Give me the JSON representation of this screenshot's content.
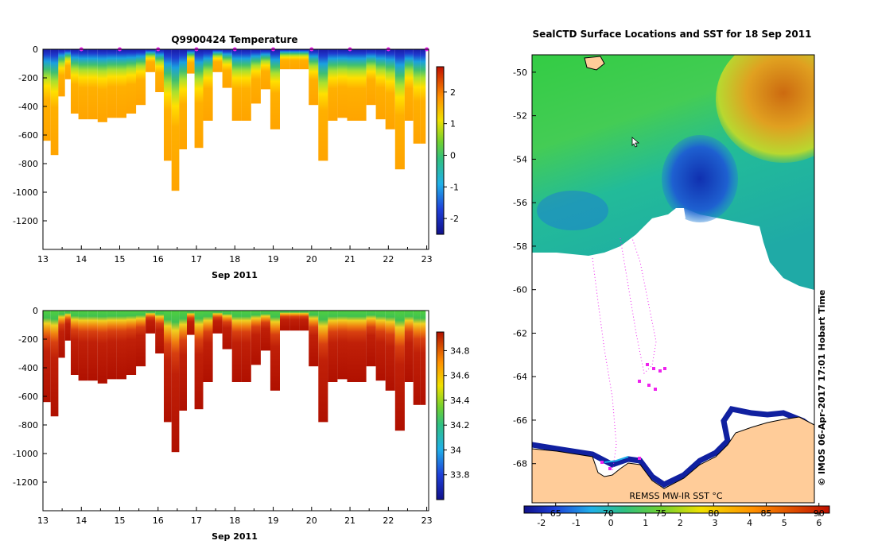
{
  "charts": {
    "temperature": {
      "type": "heatmap",
      "title": "Q9900424  Temperature",
      "xlabel": "Sep 2011",
      "x_ticks": [
        "13",
        "14",
        "15",
        "16",
        "17",
        "18",
        "19",
        "20",
        "21",
        "22",
        "23"
      ],
      "xlim": [
        13,
        23.05
      ],
      "y_ticks": [
        "0",
        "-200",
        "-400",
        "-600",
        "-800",
        "-1000",
        "-1200"
      ],
      "ylim": [
        -1400,
        0
      ],
      "colorbar_ticks": [
        "2",
        "1",
        "0",
        "-1",
        "-2"
      ],
      "colorbar_range": [
        -2.5,
        2.8
      ],
      "colors": {
        "surface": "#1020a0",
        "mid": "#40c070",
        "deep": "#ffb000"
      }
    },
    "salinity": {
      "type": "heatmap",
      "title": "",
      "xlabel": "Sep 2011",
      "x_ticks": [
        "13",
        "14",
        "15",
        "16",
        "17",
        "18",
        "19",
        "20",
        "21",
        "22",
        "23"
      ],
      "xlim": [
        13,
        23.05
      ],
      "y_ticks": [
        "0",
        "-200",
        "-400",
        "-600",
        "-800",
        "-1000",
        "-1200"
      ],
      "ylim": [
        -1400,
        0
      ],
      "colorbar_ticks": [
        "34.8",
        "34.6",
        "34.4",
        "34.2",
        "34",
        "33.8"
      ],
      "colorbar_range": [
        33.6,
        34.95
      ],
      "colors": {
        "surface": "#30c050",
        "mid": "#e06010",
        "deep": "#b01000"
      }
    },
    "map": {
      "title": "SealCTD Surface Locations and SST for 18 Sep 2011",
      "y_ticks": [
        "-50",
        "-52",
        "-54",
        "-56",
        "-58",
        "-60",
        "-62",
        "-64",
        "-66",
        "-68"
      ],
      "ylim": [
        -69.8,
        -49.2
      ],
      "colorbar_label": "REMSS MW-IR SST °C",
      "colorbar_top_ticks": [
        "65",
        "70",
        "75",
        "80",
        "85",
        "90"
      ],
      "colorbar_bottom_ticks": [
        "-2",
        "-1",
        "0",
        "1",
        "2",
        "3",
        "4",
        "5",
        "6"
      ],
      "colors": {
        "land": "#ffcc99",
        "track": "#ee22ee"
      }
    }
  },
  "chart_data": [
    {
      "type": "heatmap",
      "title": "Q9900424  Temperature",
      "xlabel": "Sep 2011",
      "ylabel": "",
      "x_range": [
        13,
        23.05
      ],
      "y_range": [
        -1400,
        0
      ],
      "colorbar_range": [
        -2.5,
        2.8
      ],
      "profiles": [
        {
          "day": 13.1,
          "max_depth": 640
        },
        {
          "day": 13.3,
          "max_depth": 740
        },
        {
          "day": 13.5,
          "max_depth": 330
        },
        {
          "day": 13.65,
          "max_depth": 210
        },
        {
          "day": 13.8,
          "max_depth": 450
        },
        {
          "day": 14.05,
          "max_depth": 490
        },
        {
          "day": 14.3,
          "max_depth": 490
        },
        {
          "day": 14.55,
          "max_depth": 510
        },
        {
          "day": 14.8,
          "max_depth": 480
        },
        {
          "day": 15.05,
          "max_depth": 480
        },
        {
          "day": 15.3,
          "max_depth": 450
        },
        {
          "day": 15.55,
          "max_depth": 390
        },
        {
          "day": 15.8,
          "max_depth": 160
        },
        {
          "day": 16.05,
          "max_depth": 300
        },
        {
          "day": 16.25,
          "max_depth": 780
        },
        {
          "day": 16.45,
          "max_depth": 990
        },
        {
          "day": 16.65,
          "max_depth": 700
        },
        {
          "day": 16.85,
          "max_depth": 170
        },
        {
          "day": 17.05,
          "max_depth": 690
        },
        {
          "day": 17.3,
          "max_depth": 500
        },
        {
          "day": 17.55,
          "max_depth": 160
        },
        {
          "day": 17.8,
          "max_depth": 270
        },
        {
          "day": 18.05,
          "max_depth": 500
        },
        {
          "day": 18.3,
          "max_depth": 500
        },
        {
          "day": 18.55,
          "max_depth": 380
        },
        {
          "day": 18.8,
          "max_depth": 280
        },
        {
          "day": 19.05,
          "max_depth": 560
        },
        {
          "day": 19.3,
          "max_depth": 140
        },
        {
          "day": 19.55,
          "max_depth": 140
        },
        {
          "day": 19.8,
          "max_depth": 140
        },
        {
          "day": 20.05,
          "max_depth": 390
        },
        {
          "day": 20.3,
          "max_depth": 780
        },
        {
          "day": 20.55,
          "max_depth": 500
        },
        {
          "day": 20.8,
          "max_depth": 480
        },
        {
          "day": 21.05,
          "max_depth": 500
        },
        {
          "day": 21.3,
          "max_depth": 500
        },
        {
          "day": 21.55,
          "max_depth": 390
        },
        {
          "day": 21.8,
          "max_depth": 490
        },
        {
          "day": 22.05,
          "max_depth": 560
        },
        {
          "day": 22.3,
          "max_depth": 840
        },
        {
          "day": 22.55,
          "max_depth": 500
        },
        {
          "day": 22.75,
          "max_depth": 660
        },
        {
          "day": 22.9,
          "max_depth": 660
        }
      ]
    },
    {
      "type": "heatmap",
      "title": "",
      "xlabel": "Sep 2011",
      "ylabel": "",
      "x_range": [
        13,
        23.05
      ],
      "y_range": [
        -1400,
        0
      ],
      "colorbar_range": [
        33.6,
        34.95
      ],
      "profiles": "same profile depths as the temperature section"
    },
    {
      "type": "heatmap",
      "title": "SealCTD Surface Locations and SST for 18 Sep 2011",
      "xlabel": "",
      "ylabel": "",
      "y_range": [
        -69.8,
        -49.2
      ],
      "colorbar_label": "REMSS MW-IR SST °C",
      "colorbar_range": [
        -2.5,
        6.3
      ]
    }
  ],
  "footer": {
    "vertical_credit": "© IMOS 06-Apr-2017 17:01 Hobart Time"
  }
}
